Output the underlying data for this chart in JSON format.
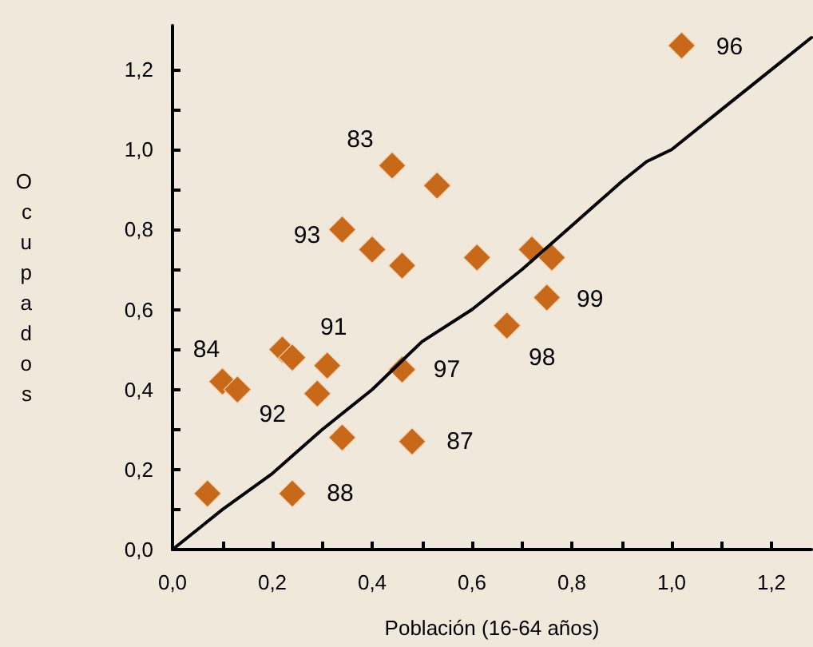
{
  "chart_data": {
    "type": "scatter",
    "xlabel": "Población (16-64 años)",
    "ylabel": "Ocupados",
    "xlim": [
      0,
      1.28
    ],
    "ylim": [
      0,
      1.31
    ],
    "xticks": [
      {
        "value": 0,
        "label": "0,0"
      },
      {
        "value": 0.1,
        "label": null
      },
      {
        "value": 0.2,
        "label": "0,2"
      },
      {
        "value": 0.3,
        "label": null
      },
      {
        "value": 0.4,
        "label": "0,4"
      },
      {
        "value": 0.5,
        "label": null
      },
      {
        "value": 0.6,
        "label": "0,6"
      },
      {
        "value": 0.7,
        "label": null
      },
      {
        "value": 0.8,
        "label": "0,8"
      },
      {
        "value": 0.9,
        "label": null
      },
      {
        "value": 1.0,
        "label": "1,0"
      },
      {
        "value": 1.1,
        "label": null
      },
      {
        "value": 1.2,
        "label": "1,2"
      }
    ],
    "yticks": [
      {
        "value": 0,
        "label": "0,0"
      },
      {
        "value": 0.1,
        "label": null
      },
      {
        "value": 0.2,
        "label": "0,2"
      },
      {
        "value": 0.3,
        "label": null
      },
      {
        "value": 0.4,
        "label": "0,4"
      },
      {
        "value": 0.5,
        "label": null
      },
      {
        "value": 0.6,
        "label": "0,6"
      },
      {
        "value": 0.7,
        "label": null
      },
      {
        "value": 0.8,
        "label": "0,8"
      },
      {
        "value": 0.9,
        "label": null
      },
      {
        "value": 1.0,
        "label": "1,0"
      },
      {
        "value": 1.1,
        "label": null
      },
      {
        "value": 1.2,
        "label": "1,2"
      }
    ],
    "grid": false,
    "marker": "diamond",
    "series": [
      {
        "type": "scatter",
        "color": "#c8691a",
        "x": [
          1.02,
          0.44,
          0.53,
          0.34,
          0.4,
          0.46,
          0.61,
          0.72,
          0.76,
          0.75,
          0.67,
          0.31,
          0.22,
          0.24,
          0.1,
          0.13,
          0.29,
          0.34,
          0.46,
          0.48,
          0.07,
          0.24
        ],
        "values": [
          1.26,
          0.96,
          0.91,
          0.8,
          0.75,
          0.71,
          0.73,
          0.75,
          0.73,
          0.63,
          0.56,
          0.46,
          0.5,
          0.48,
          0.42,
          0.4,
          0.39,
          0.28,
          0.45,
          0.27,
          0.14,
          0.14
        ]
      },
      {
        "type": "line",
        "color": "#000000",
        "marker": "none",
        "line_style": "solid",
        "x": [
          0,
          0.1,
          0.2,
          0.3,
          0.4,
          0.5,
          0.6,
          0.7,
          0.8,
          0.9,
          0.95,
          1.0,
          1.1,
          1.2,
          1.28
        ],
        "values": [
          0,
          0.1,
          0.19,
          0.3,
          0.4,
          0.52,
          0.6,
          0.7,
          0.81,
          0.92,
          0.97,
          1.0,
          1.1,
          1.2,
          1.28
        ]
      }
    ],
    "annotations": [
      {
        "text": "96",
        "x": 1.02,
        "y": 1.26
      },
      {
        "text": "83",
        "x": 0.44,
        "y": 0.96
      },
      {
        "text": "93",
        "x": 0.34,
        "y": 0.8
      },
      {
        "text": "99",
        "x": 0.75,
        "y": 0.63
      },
      {
        "text": "98",
        "x": 0.67,
        "y": 0.56
      },
      {
        "text": "91",
        "x": 0.31,
        "y": 0.46
      },
      {
        "text": "84",
        "x": 0.1,
        "y": 0.42
      },
      {
        "text": "92",
        "x": 0.29,
        "y": 0.39
      },
      {
        "text": "97",
        "x": 0.46,
        "y": 0.45
      },
      {
        "text": "87",
        "x": 0.48,
        "y": 0.27
      },
      {
        "text": "88",
        "x": 0.24,
        "y": 0.14
      }
    ]
  }
}
